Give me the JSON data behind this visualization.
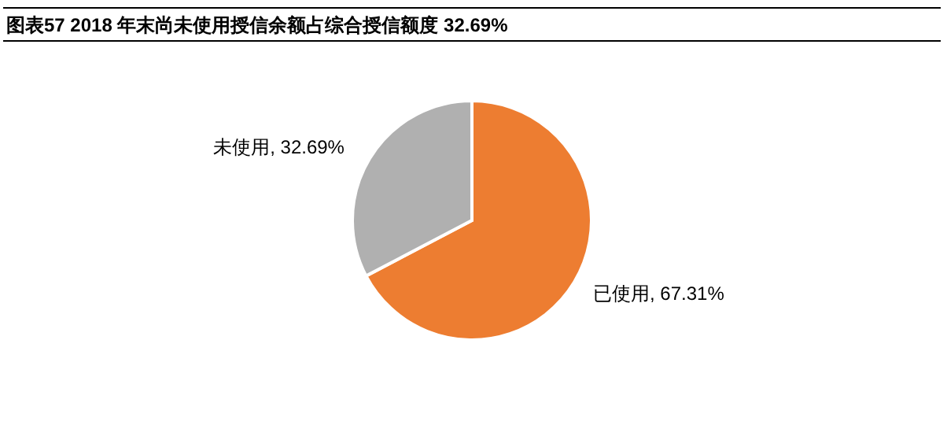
{
  "chart_data": {
    "type": "pie",
    "title": "图表57    2018 年末尚未使用授信余额占综合授信额度 32.69%",
    "categories": [
      "已使用",
      "未使用"
    ],
    "values": [
      67.31,
      32.69
    ],
    "value_labels": [
      "67.31%",
      "32.69%"
    ],
    "colors": [
      "#ed7d31",
      "#b0b0b0"
    ],
    "legend": false
  }
}
